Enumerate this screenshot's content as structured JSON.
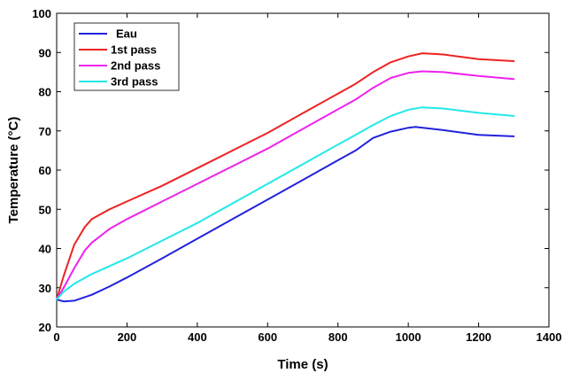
{
  "chart_data": {
    "type": "line",
    "xlabel": "Time (s)",
    "ylabel": "Temperature (°C)",
    "xlim": [
      0,
      1400
    ],
    "ylim": [
      20,
      100
    ],
    "xticks": [
      0,
      200,
      400,
      600,
      800,
      1000,
      1200,
      1400
    ],
    "yticks": [
      20,
      30,
      40,
      50,
      60,
      70,
      80,
      90,
      100
    ],
    "grid": false,
    "legend_position": "top-left",
    "series": [
      {
        "name": "Eau",
        "color": "#2222dd",
        "x": [
          0,
          20,
          50,
          100,
          150,
          200,
          300,
          400,
          500,
          600,
          700,
          800,
          850,
          900,
          950,
          1000,
          1020,
          1100,
          1200,
          1300
        ],
        "y": [
          27,
          26.5,
          26.7,
          28.2,
          30.3,
          32.6,
          37.5,
          42.5,
          47.5,
          52.5,
          57.5,
          62.5,
          65,
          68.2,
          69.8,
          70.8,
          71,
          70.2,
          69,
          68.6
        ]
      },
      {
        "name": "1st pass",
        "color": "#ee2222",
        "x": [
          0,
          20,
          50,
          80,
          100,
          150,
          200,
          300,
          400,
          500,
          600,
          700,
          800,
          850,
          900,
          950,
          1000,
          1040,
          1100,
          1200,
          1300
        ],
        "y": [
          27,
          33,
          41,
          45.5,
          47.5,
          50,
          52,
          56,
          60.5,
          65,
          69.5,
          74.5,
          79.5,
          82,
          85,
          87.5,
          89,
          89.8,
          89.5,
          88.3,
          87.8
        ]
      },
      {
        "name": "2nd pass",
        "color": "#ee22ee",
        "x": [
          0,
          20,
          50,
          80,
          100,
          150,
          200,
          300,
          400,
          500,
          600,
          700,
          800,
          850,
          900,
          950,
          1000,
          1040,
          1100,
          1200,
          1300
        ],
        "y": [
          27,
          30,
          35,
          39.5,
          41.5,
          45,
          47.5,
          52,
          56.5,
          61,
          65.5,
          70.5,
          75.5,
          78,
          81,
          83.5,
          84.8,
          85.2,
          85,
          84,
          83.2
        ]
      },
      {
        "name": "3rd pass",
        "color": "#22e8e8",
        "x": [
          0,
          20,
          50,
          100,
          150,
          200,
          300,
          400,
          500,
          600,
          700,
          800,
          850,
          900,
          950,
          1000,
          1040,
          1100,
          1200,
          1300
        ],
        "y": [
          27,
          29,
          31,
          33.5,
          35.5,
          37.5,
          42,
          46.5,
          51.5,
          56.5,
          61.5,
          66.5,
          69,
          71.5,
          73.8,
          75.4,
          76,
          75.7,
          74.6,
          73.8
        ]
      }
    ]
  }
}
